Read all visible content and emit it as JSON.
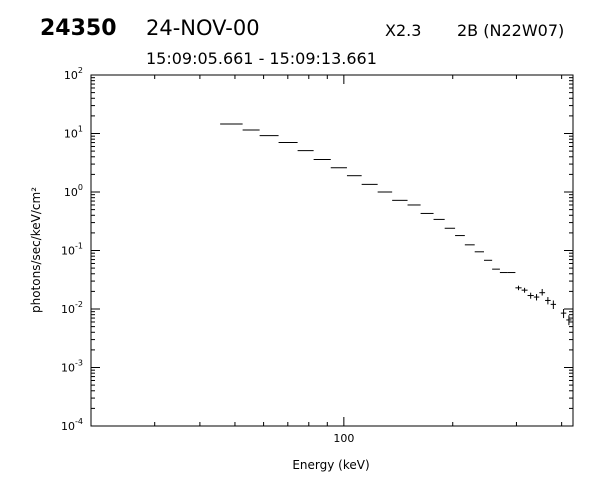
{
  "header": {
    "event_id": "24350",
    "date": "24-NOV-00",
    "goes_class": "X2.3",
    "flare_info": "2B (N22W07)",
    "time_range": "15:09:05.661 - 15:09:13.661"
  },
  "chart_data": {
    "type": "scatter",
    "xlabel": "Energy (keV)",
    "ylabel": "photons/sec/keV/cm²",
    "x_scale": "log",
    "y_scale": "log",
    "xlim": [
      20,
      430
    ],
    "ylim": [
      0.0001,
      100
    ],
    "grid": false,
    "x_tick_labels": [
      {
        "value": 100,
        "label": "100"
      }
    ],
    "y_tick_labels": [
      {
        "value": 0.0001,
        "base": "10",
        "exp": "-4"
      },
      {
        "value": 0.001,
        "base": "10",
        "exp": "-3"
      },
      {
        "value": 0.01,
        "base": "10",
        "exp": "-2"
      },
      {
        "value": 0.1,
        "base": "10",
        "exp": "-1"
      },
      {
        "value": 1,
        "base": "10",
        "exp": "0"
      },
      {
        "value": 10,
        "base": "10",
        "exp": "1"
      },
      {
        "value": 100,
        "base": "10",
        "exp": "2"
      }
    ],
    "points": [
      {
        "x_lo": 45.5,
        "x_hi": 52.5,
        "y": 14.5
      },
      {
        "x_lo": 52.5,
        "x_hi": 58.5,
        "y": 11.5
      },
      {
        "x_lo": 58.5,
        "x_hi": 66,
        "y": 9.2
      },
      {
        "x_lo": 66,
        "x_hi": 74.5,
        "y": 7.0
      },
      {
        "x_lo": 74.5,
        "x_hi": 82.5,
        "y": 5.1
      },
      {
        "x_lo": 82.5,
        "x_hi": 92,
        "y": 3.6
      },
      {
        "x_lo": 92,
        "x_hi": 102,
        "y": 2.6
      },
      {
        "x_lo": 102,
        "x_hi": 112,
        "y": 1.9
      },
      {
        "x_lo": 112,
        "x_hi": 124,
        "y": 1.35
      },
      {
        "x_lo": 124,
        "x_hi": 136,
        "y": 1.0
      },
      {
        "x_lo": 136,
        "x_hi": 150,
        "y": 0.72
      },
      {
        "x_lo": 150,
        "x_hi": 163,
        "y": 0.6
      },
      {
        "x_lo": 163,
        "x_hi": 177,
        "y": 0.43
      },
      {
        "x_lo": 177,
        "x_hi": 190,
        "y": 0.34
      },
      {
        "x_lo": 190,
        "x_hi": 203,
        "y": 0.24
      },
      {
        "x_lo": 203,
        "x_hi": 216,
        "y": 0.18
      },
      {
        "x_lo": 216,
        "x_hi": 230,
        "y": 0.125
      },
      {
        "x_lo": 230,
        "x_hi": 244,
        "y": 0.095
      },
      {
        "x_lo": 244,
        "x_hi": 257,
        "y": 0.068
      },
      {
        "x_lo": 257,
        "x_hi": 270,
        "y": 0.048
      },
      {
        "x_lo": 270,
        "x_hi": 283,
        "y": 0.042
      },
      {
        "x_lo": 283,
        "x_hi": 298,
        "y": 0.042
      },
      {
        "x_lo": 298,
        "x_hi": 310,
        "y": 0.023,
        "y_lo": 0.021,
        "y_hi": 0.025
      },
      {
        "x_lo": 310,
        "x_hi": 322,
        "y": 0.021,
        "y_lo": 0.019,
        "y_hi": 0.023
      },
      {
        "x_lo": 322,
        "x_hi": 335,
        "y": 0.017,
        "y_lo": 0.015,
        "y_hi": 0.019
      },
      {
        "x_lo": 335,
        "x_hi": 347,
        "y": 0.016,
        "y_lo": 0.014,
        "y_hi": 0.018
      },
      {
        "x_lo": 347,
        "x_hi": 360,
        "y": 0.019,
        "y_lo": 0.017,
        "y_hi": 0.022
      },
      {
        "x_lo": 360,
        "x_hi": 373,
        "y": 0.014,
        "y_lo": 0.012,
        "y_hi": 0.016
      },
      {
        "x_lo": 373,
        "x_hi": 386,
        "y": 0.012,
        "y_lo": 0.01,
        "y_hi": 0.014
      },
      {
        "x_lo": 398,
        "x_hi": 412,
        "y": 0.0085,
        "y_lo": 0.007,
        "y_hi": 0.01
      },
      {
        "x_lo": 412,
        "x_hi": 426,
        "y": 0.0065,
        "y_lo": 0.0053,
        "y_hi": 0.0078
      }
    ]
  }
}
